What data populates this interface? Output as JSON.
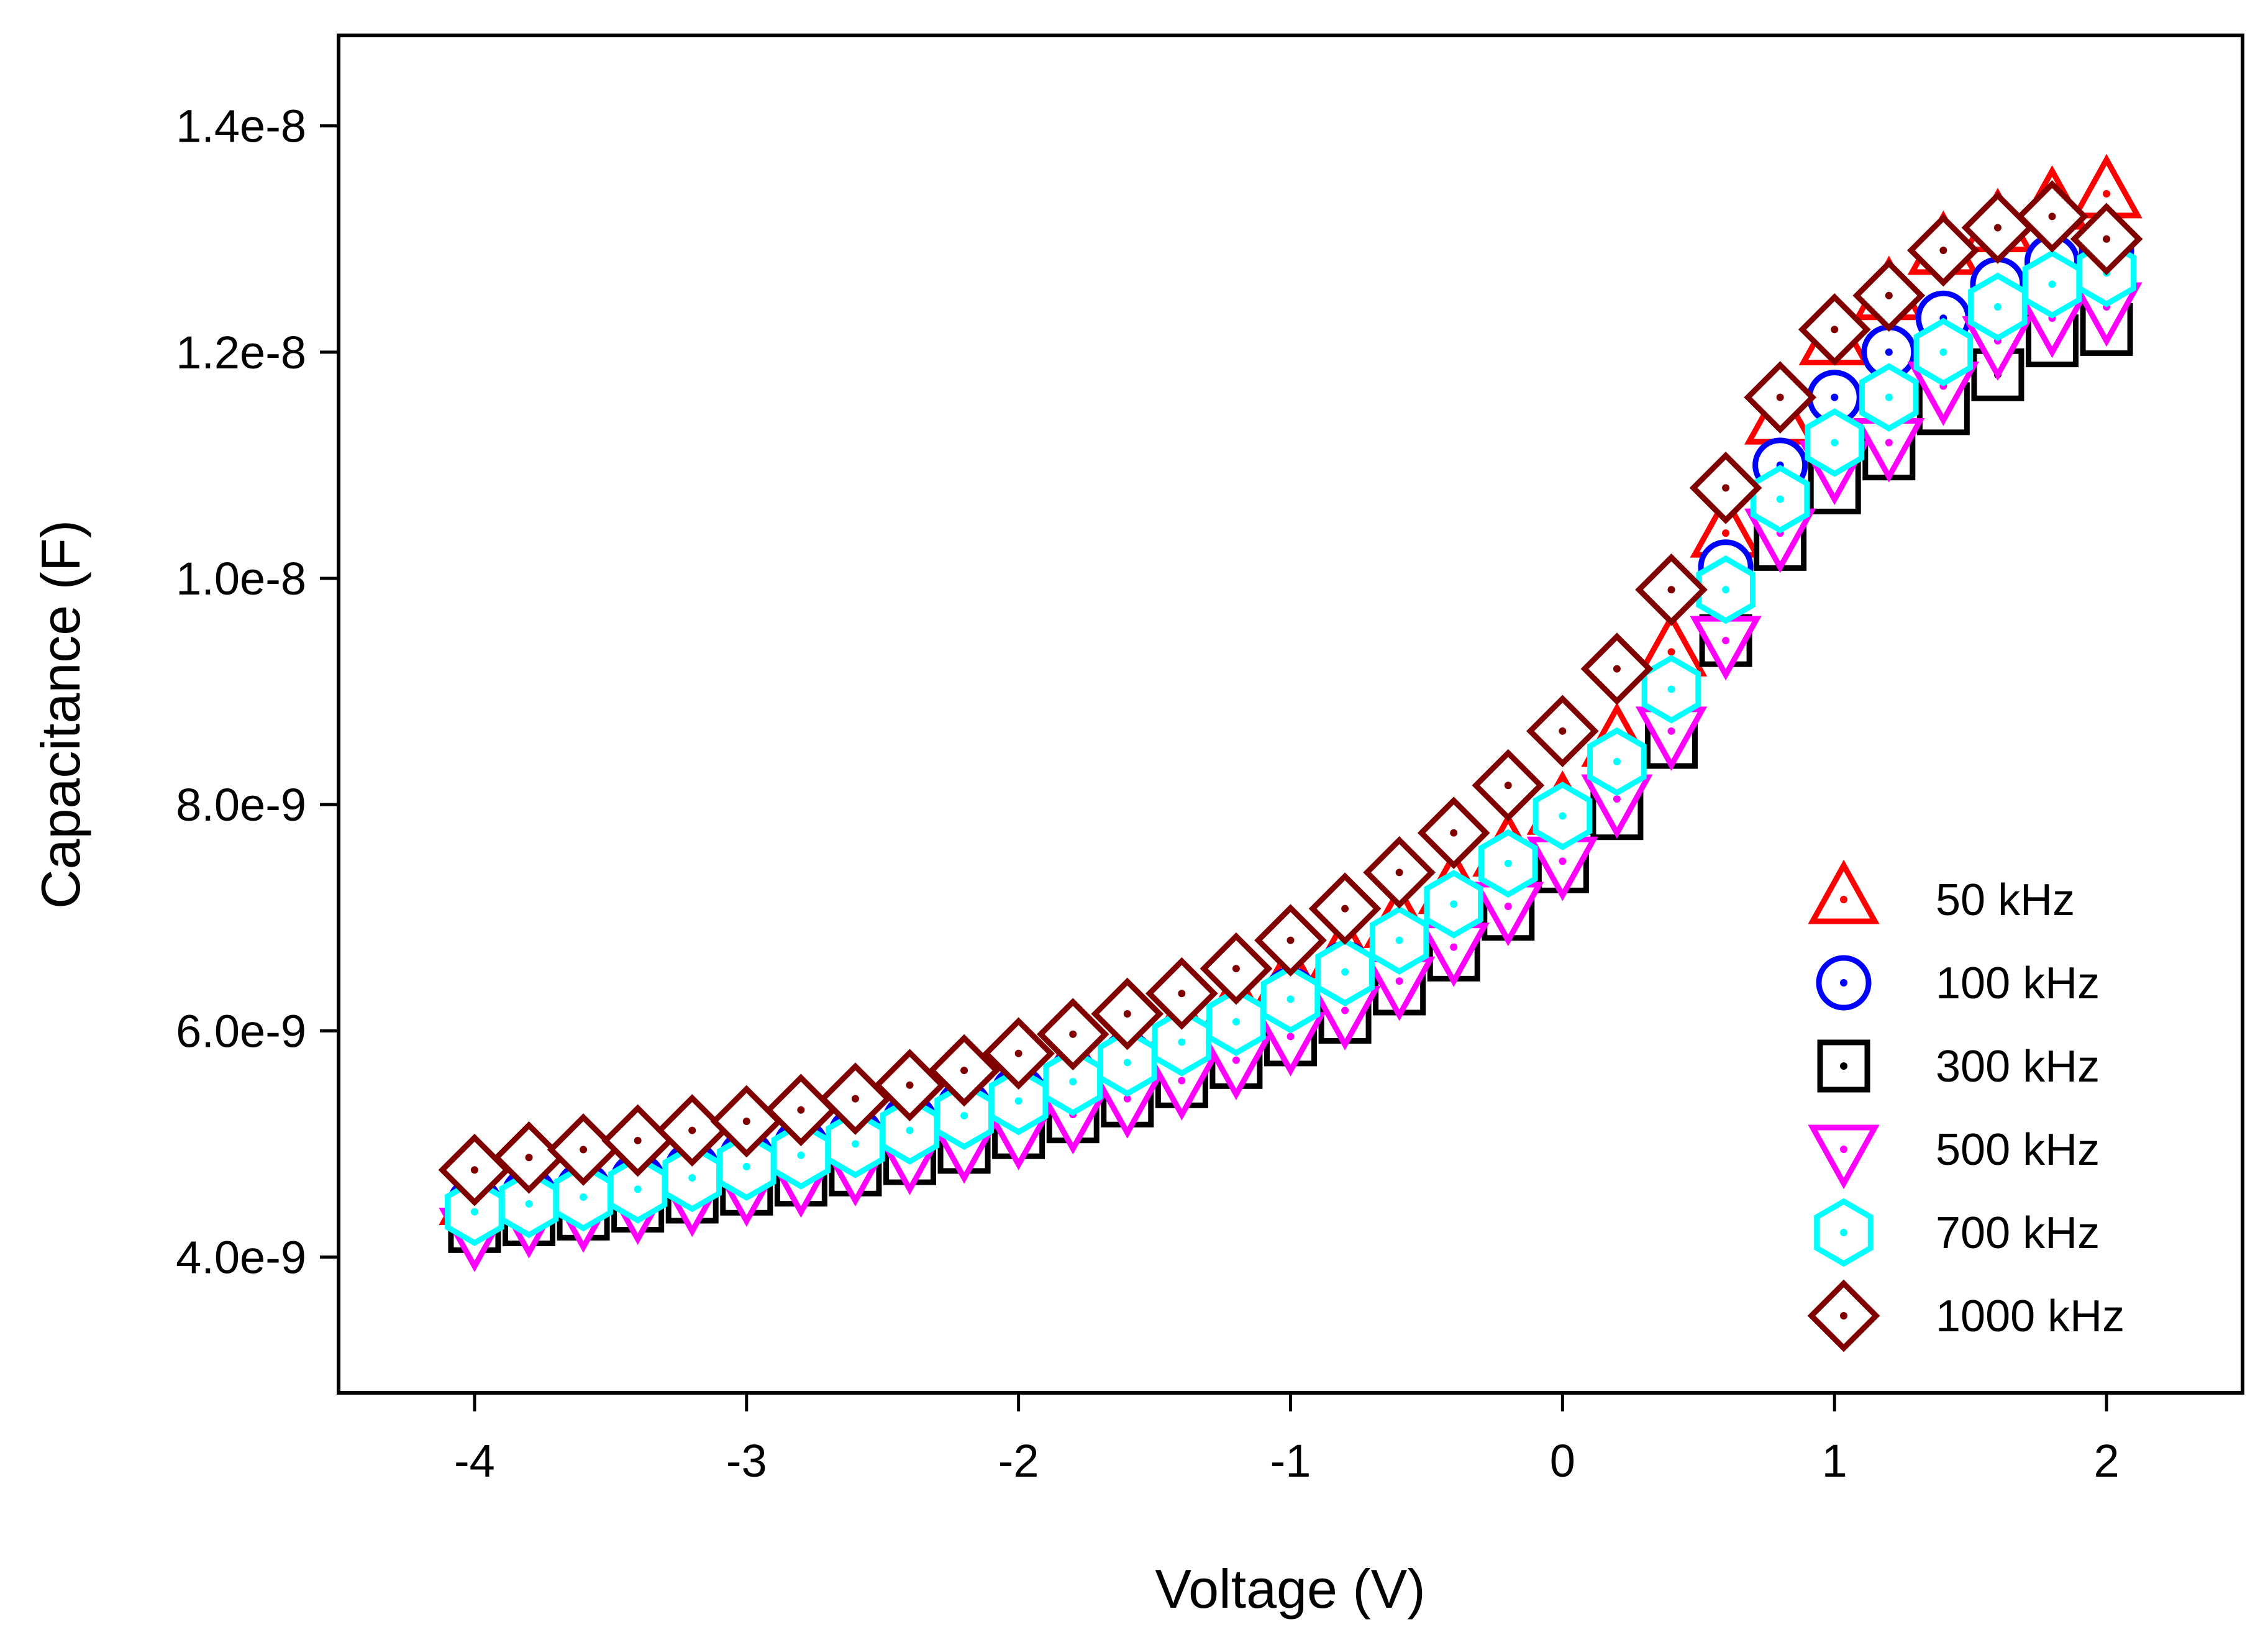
{
  "chart_data": {
    "type": "scatter",
    "title": "",
    "xlabel": "Voltage (V)",
    "ylabel": "Capacitance (F)",
    "xlim": [
      -4.5,
      2.5
    ],
    "ylim": [
      2.8e-09,
      1.48e-08
    ],
    "x_ticks": [
      -4,
      -3,
      -2,
      -1,
      0,
      1,
      2
    ],
    "x_tick_labels": [
      "-4",
      "-3",
      "-2",
      "-1",
      "0",
      "1",
      "2"
    ],
    "y_ticks": [
      4e-09,
      6e-09,
      8e-09,
      1e-08,
      1.2e-08,
      1.4e-08
    ],
    "y_tick_labels": [
      "4.0e-9",
      "6.0e-9",
      "8.0e-9",
      "1.0e-8",
      "1.2e-8",
      "1.4e-8"
    ],
    "grid": false,
    "legend_position": "bottom-right",
    "x": [
      -4.0,
      -3.8,
      -3.6,
      -3.4,
      -3.2,
      -3.0,
      -2.8,
      -2.6,
      -2.4,
      -2.2,
      -2.0,
      -1.8,
      -1.6,
      -1.4,
      -1.2,
      -1.0,
      -0.8,
      -0.6,
      -0.4,
      -0.2,
      0.0,
      0.2,
      0.4,
      0.6,
      0.8,
      1.0,
      1.2,
      1.4,
      1.6,
      1.8,
      2.0
    ],
    "series": [
      {
        "name": "50 kHz",
        "marker": "triangle-up",
        "color": "#ff0000",
        "values": [
          4.5e-09,
          4.6e-09,
          4.65e-09,
          4.75e-09,
          4.85e-09,
          4.95e-09,
          5.05e-09,
          5.15e-09,
          5.28e-09,
          5.4e-09,
          5.55e-09,
          5.7e-09,
          5.85e-09,
          6.03e-09,
          6.22e-09,
          6.45e-09,
          6.68e-09,
          6.95e-09,
          7.25e-09,
          7.58e-09,
          7.95e-09,
          8.55e-09,
          9.35e-09,
          1.04e-08,
          1.14e-08,
          1.21e-08,
          1.25e-08,
          1.29e-08,
          1.31e-08,
          1.33e-08,
          1.34e-08
        ]
      },
      {
        "name": "100 kHz",
        "marker": "circle",
        "color": "#0000ff",
        "values": [
          4.47e-09,
          4.55e-09,
          4.6e-09,
          4.68e-09,
          4.78e-09,
          4.88e-09,
          4.98e-09,
          5.08e-09,
          5.2e-09,
          5.32e-09,
          5.45e-09,
          5.58e-09,
          5.75e-09,
          5.92e-09,
          6.1e-09,
          6.32e-09,
          6.55e-09,
          6.82e-09,
          7.12e-09,
          7.48e-09,
          7.9e-09,
          8.4e-09,
          9e-09,
          1.01e-08,
          1.1e-08,
          1.16e-08,
          1.2e-08,
          1.23e-08,
          1.26e-08,
          1.28e-08,
          1.29e-08
        ]
      },
      {
        "name": "300 kHz",
        "marker": "square",
        "color": "#000000",
        "values": [
          4.27e-09,
          4.33e-09,
          4.38e-09,
          4.45e-09,
          4.53e-09,
          4.6e-09,
          4.68e-09,
          4.77e-09,
          4.87e-09,
          4.97e-09,
          5.1e-09,
          5.24e-09,
          5.38e-09,
          5.55e-09,
          5.72e-09,
          5.92e-09,
          6.12e-09,
          6.37e-09,
          6.67e-09,
          7.03e-09,
          7.45e-09,
          7.92e-09,
          8.55e-09,
          9.45e-09,
          1.03e-08,
          1.08e-08,
          1.11e-08,
          1.15e-08,
          1.18e-08,
          1.21e-08,
          1.22e-08
        ]
      },
      {
        "name": "500 kHz",
        "marker": "triangle-down",
        "color": "#ff00ff",
        "values": [
          4.22e-09,
          4.34e-09,
          4.39e-09,
          4.46e-09,
          4.53e-09,
          4.62e-09,
          4.7e-09,
          4.8e-09,
          4.9e-09,
          5e-09,
          5.12e-09,
          5.26e-09,
          5.4e-09,
          5.56e-09,
          5.74e-09,
          5.95e-09,
          6.18e-09,
          6.44e-09,
          6.74e-09,
          7.1e-09,
          7.5e-09,
          8.05e-09,
          8.65e-09,
          9.45e-09,
          1.04e-08,
          1.1e-08,
          1.12e-08,
          1.17e-08,
          1.21e-08,
          1.23e-08,
          1.24e-08
        ]
      },
      {
        "name": "700 kHz",
        "marker": "hexagon",
        "color": "#00ffff",
        "values": [
          4.4e-09,
          4.47e-09,
          4.53e-09,
          4.6e-09,
          4.7e-09,
          4.8e-09,
          4.9e-09,
          5e-09,
          5.12e-09,
          5.25e-09,
          5.38e-09,
          5.55e-09,
          5.72e-09,
          5.9e-09,
          6.08e-09,
          6.28e-09,
          6.52e-09,
          6.8e-09,
          7.12e-09,
          7.48e-09,
          7.9e-09,
          8.38e-09,
          9.02e-09,
          9.9e-09,
          1.07e-08,
          1.12e-08,
          1.16e-08,
          1.2e-08,
          1.24e-08,
          1.26e-08,
          1.27e-08
        ]
      },
      {
        "name": "1000 kHz",
        "marker": "diamond",
        "color": "#800000",
        "values": [
          4.77e-09,
          4.88e-09,
          4.95e-09,
          5.03e-09,
          5.12e-09,
          5.2e-09,
          5.3e-09,
          5.4e-09,
          5.52e-09,
          5.65e-09,
          5.8e-09,
          5.97e-09,
          6.15e-09,
          6.33e-09,
          6.55e-09,
          6.8e-09,
          7.08e-09,
          7.4e-09,
          7.75e-09,
          8.17e-09,
          8.65e-09,
          9.2e-09,
          9.9e-09,
          1.08e-08,
          1.16e-08,
          1.22e-08,
          1.25e-08,
          1.29e-08,
          1.31e-08,
          1.32e-08,
          1.3e-08
        ]
      }
    ]
  }
}
